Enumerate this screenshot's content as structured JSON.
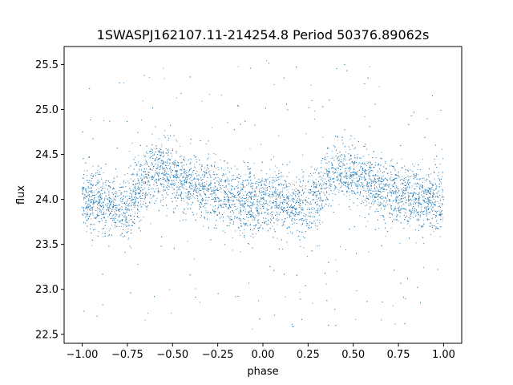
{
  "chart_data": {
    "type": "scatter",
    "title": "1SWASPJ162107.11-214254.8 Period 50376.89062s",
    "xlabel": "phase",
    "ylabel": "flux",
    "xlim": [
      -1.1,
      1.1
    ],
    "ylim": [
      22.4,
      25.7
    ],
    "grid": false,
    "legend": "none",
    "marker_color": "#1f77b4",
    "x_ticks": [
      -1.0,
      -0.75,
      -0.5,
      -0.25,
      0.0,
      0.25,
      0.5,
      0.75,
      1.0
    ],
    "x_tick_labels": [
      "−1.00",
      "−0.75",
      "−0.50",
      "−0.25",
      "0.00",
      "0.25",
      "0.50",
      "0.75",
      "1.00"
    ],
    "y_ticks": [
      22.5,
      23.0,
      23.5,
      24.0,
      24.5,
      25.0,
      25.5
    ],
    "y_tick_labels": [
      "22.5",
      "23.0",
      "23.5",
      "24.0",
      "24.5",
      "25.0",
      "25.5"
    ],
    "series": [
      {
        "x_range": [
          -1.0,
          1.0
        ],
        "profile_phase": [
          0.0,
          0.1,
          0.2,
          0.25,
          0.3,
          0.35,
          0.4,
          0.45,
          0.55,
          0.65,
          0.75,
          0.85,
          0.95,
          1.0
        ],
        "profile_flux": [
          23.98,
          23.98,
          23.92,
          23.9,
          24.05,
          24.22,
          24.32,
          24.3,
          24.2,
          24.12,
          24.05,
          24.0,
          23.98,
          23.98
        ]
      }
    ]
  }
}
